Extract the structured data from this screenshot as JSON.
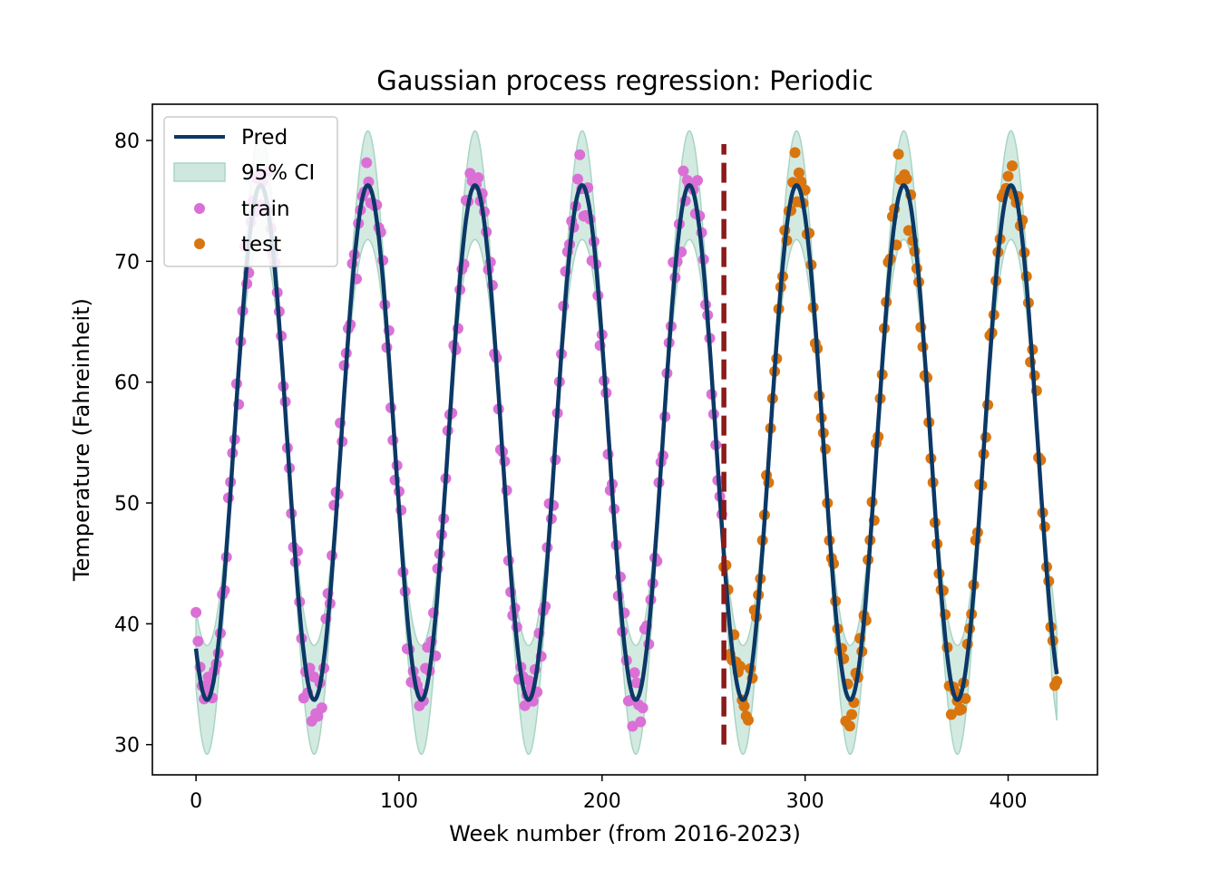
{
  "chart_data": {
    "type": "line",
    "title": "Gaussian process regression: Periodic",
    "xlabel": "Week number (from 2016-2023)",
    "ylabel": "Temperature (Fahreinheit)",
    "xlim": [
      -21.5,
      444
    ],
    "ylim": [
      27.5,
      83
    ],
    "xticks": [
      0,
      100,
      200,
      300,
      400
    ],
    "yticks": [
      30,
      40,
      50,
      60,
      70,
      80
    ],
    "split_week": 260,
    "split_range": [
      30,
      79.7
    ],
    "legend": {
      "position": "upper left",
      "entries": [
        {
          "label": "Pred",
          "kind": "line"
        },
        {
          "label": "95% CI",
          "kind": "band"
        },
        {
          "label": "train",
          "kind": "dot"
        },
        {
          "label": "test",
          "kind": "dot"
        }
      ]
    },
    "model": {
      "period_weeks": 52.8,
      "mean": 55.0,
      "amplitude": 21.3,
      "phase_peak_week": 31.8,
      "x_start": 0,
      "x_end": 424,
      "ci_halfwidth_min": 1.0,
      "ci_halfwidth_max": 4.5,
      "ci_end_halfwidth": 3.8
    },
    "series": [
      {
        "name": "Pred",
        "color": "#0b3866"
      },
      {
        "name": "95% CI",
        "color": "#a8d5c4"
      },
      {
        "name": "train",
        "color": "#da70d6",
        "x_range": [
          0,
          259
        ]
      },
      {
        "name": "test",
        "color": "#d9750f",
        "x_range": [
          260,
          424
        ]
      }
    ],
    "split_color": "#8b1a1a"
  }
}
